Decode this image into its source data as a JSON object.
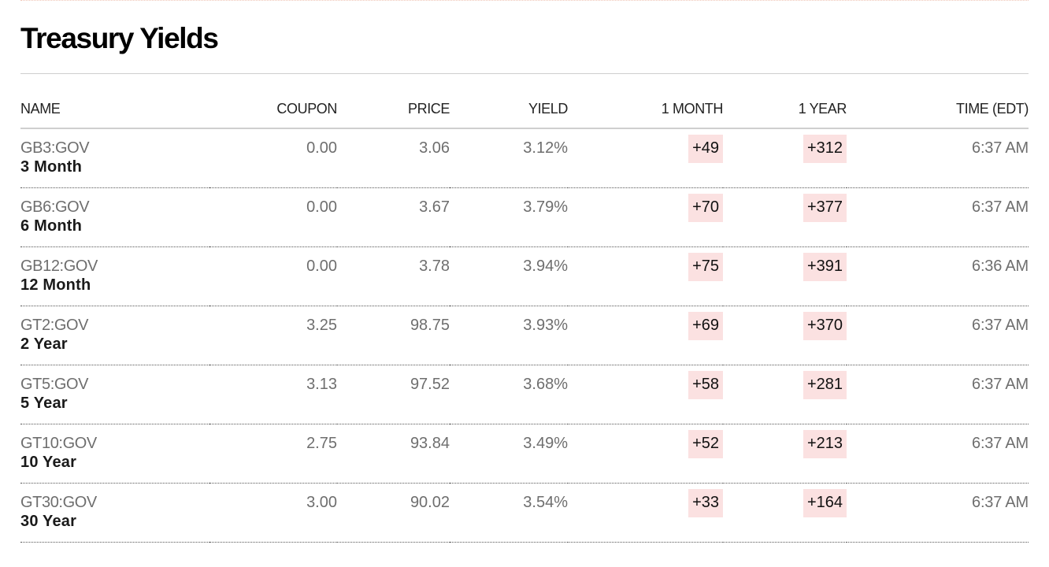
{
  "section": {
    "title": "Treasury Yields"
  },
  "table": {
    "headers": {
      "name": "NAME",
      "coupon": "COUPON",
      "price": "PRICE",
      "yield": "YIELD",
      "month": "1 MONTH",
      "year": "1 YEAR",
      "time": "TIME (EDT)"
    },
    "rows": [
      {
        "ticker": "GB3:GOV",
        "term": "3 Month",
        "coupon": "0.00",
        "price": "3.06",
        "yield": "3.12%",
        "month": "+49",
        "year": "+312",
        "time": "6:37 AM"
      },
      {
        "ticker": "GB6:GOV",
        "term": "6 Month",
        "coupon": "0.00",
        "price": "3.67",
        "yield": "3.79%",
        "month": "+70",
        "year": "+377",
        "time": "6:37 AM"
      },
      {
        "ticker": "GB12:GOV",
        "term": "12 Month",
        "coupon": "0.00",
        "price": "3.78",
        "yield": "3.94%",
        "month": "+75",
        "year": "+391",
        "time": "6:36 AM"
      },
      {
        "ticker": "GT2:GOV",
        "term": "2 Year",
        "coupon": "3.25",
        "price": "98.75",
        "yield": "3.93%",
        "month": "+69",
        "year": "+370",
        "time": "6:37 AM"
      },
      {
        "ticker": "GT5:GOV",
        "term": "5 Year",
        "coupon": "3.13",
        "price": "97.52",
        "yield": "3.68%",
        "month": "+58",
        "year": "+281",
        "time": "6:37 AM"
      },
      {
        "ticker": "GT10:GOV",
        "term": "10 Year",
        "coupon": "2.75",
        "price": "93.84",
        "yield": "3.49%",
        "month": "+52",
        "year": "+213",
        "time": "6:37 AM"
      },
      {
        "ticker": "GT30:GOV",
        "term": "30 Year",
        "coupon": "3.00",
        "price": "90.02",
        "yield": "3.54%",
        "month": "+33",
        "year": "+164",
        "time": "6:37 AM"
      }
    ]
  },
  "colors": {
    "positive_change_bg": "#fbe1e1",
    "title": "#000000",
    "muted_text": "#6e6e6e"
  }
}
